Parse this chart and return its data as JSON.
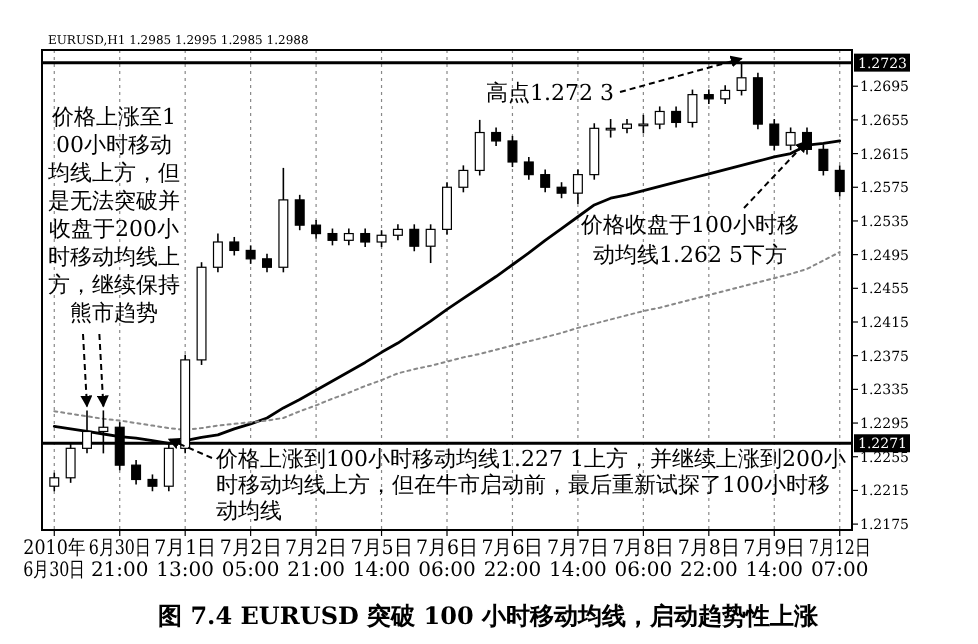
{
  "chart_data": {
    "type": "candlestick",
    "title": "图 7.4 EURUSD 突破 100 小时移动均线，启动趋势性上涨",
    "subtitle": "EURUSD,H1 1.2985 1.2995 1.2985 1.2988",
    "color": "#000000",
    "categories": [
      "2010年 6月30日",
      null,
      null,
      null,
      "6月30日 21:00",
      null,
      null,
      null,
      "7月1日 13:00",
      null,
      null,
      null,
      "7月2日 05:00",
      null,
      null,
      null,
      "7月2日 21:00",
      null,
      null,
      null,
      "7月5日 14:00",
      null,
      null,
      null,
      "7月6日 06:00",
      null,
      null,
      null,
      "7月6日 22:00",
      null,
      null,
      null,
      "7月7日 14:00",
      null,
      null,
      null,
      "7月8日 06:00",
      null,
      null,
      null,
      "7月8日 22:00",
      null,
      null,
      null,
      "7月9日 14:00",
      null,
      null,
      null,
      "7月12日 07:00"
    ],
    "ohlc": [
      [
        1.222,
        1.2236,
        1.2214,
        1.223
      ],
      [
        1.223,
        1.2271,
        1.2224,
        1.2265
      ],
      [
        1.2265,
        1.231,
        1.2259,
        1.2285
      ],
      [
        1.2285,
        1.231,
        1.2259,
        1.229
      ],
      [
        1.229,
        1.2296,
        1.2239,
        1.2245
      ],
      [
        1.2245,
        1.2251,
        1.2222,
        1.2228
      ],
      [
        1.2228,
        1.2234,
        1.2214,
        1.222
      ],
      [
        1.222,
        1.2271,
        1.2214,
        1.2265
      ],
      [
        1.2265,
        1.2376,
        1.2259,
        1.237
      ],
      [
        1.237,
        1.2486,
        1.2364,
        1.248
      ],
      [
        1.248,
        1.252,
        1.2474,
        1.251
      ],
      [
        1.251,
        1.2516,
        1.2494,
        1.25
      ],
      [
        1.25,
        1.2506,
        1.2484,
        1.249
      ],
      [
        1.249,
        1.2496,
        1.2474,
        1.248
      ],
      [
        1.248,
        1.2598,
        1.2474,
        1.256
      ],
      [
        1.256,
        1.2566,
        1.2524,
        1.253
      ],
      [
        1.253,
        1.2536,
        1.2514,
        1.252
      ],
      [
        1.252,
        1.2526,
        1.2506,
        1.2512
      ],
      [
        1.2512,
        1.2526,
        1.2506,
        1.252
      ],
      [
        1.252,
        1.2526,
        1.2504,
        1.251
      ],
      [
        1.251,
        1.2524,
        1.2504,
        1.2518
      ],
      [
        1.2518,
        1.2531,
        1.2512,
        1.2525
      ],
      [
        1.2525,
        1.2531,
        1.2499,
        1.2505
      ],
      [
        1.2505,
        1.2531,
        1.2485,
        1.2525
      ],
      [
        1.2525,
        1.2581,
        1.2519,
        1.2575
      ],
      [
        1.2575,
        1.2601,
        1.2569,
        1.2595
      ],
      [
        1.2595,
        1.2655,
        1.2589,
        1.264
      ],
      [
        1.264,
        1.2646,
        1.2624,
        1.263
      ],
      [
        1.263,
        1.2636,
        1.2599,
        1.2605
      ],
      [
        1.2605,
        1.2611,
        1.2584,
        1.259
      ],
      [
        1.259,
        1.2596,
        1.2569,
        1.2575
      ],
      [
        1.2575,
        1.2581,
        1.2562,
        1.2568
      ],
      [
        1.2568,
        1.2596,
        1.2555,
        1.259
      ],
      [
        1.259,
        1.2651,
        1.2584,
        1.2645
      ],
      [
        1.2645,
        1.2656,
        1.2634,
        1.2645
      ],
      [
        1.2645,
        1.2656,
        1.2639,
        1.265
      ],
      [
        1.265,
        1.2661,
        1.2639,
        1.265
      ],
      [
        1.265,
        1.2671,
        1.2644,
        1.2665
      ],
      [
        1.2665,
        1.2671,
        1.2646,
        1.2652
      ],
      [
        1.2652,
        1.2691,
        1.2646,
        1.2685
      ],
      [
        1.2685,
        1.2691,
        1.2674,
        1.268
      ],
      [
        1.268,
        1.2696,
        1.2674,
        1.269
      ],
      [
        1.269,
        1.2723,
        1.2684,
        1.2705
      ],
      [
        1.2705,
        1.2711,
        1.2644,
        1.265
      ],
      [
        1.265,
        1.2656,
        1.2619,
        1.2625
      ],
      [
        1.2625,
        1.2646,
        1.2619,
        1.264
      ],
      [
        1.264,
        1.2646,
        1.2614,
        1.262
      ],
      [
        1.262,
        1.2626,
        1.2589,
        1.2595
      ],
      [
        1.2595,
        1.2601,
        1.2564,
        1.257
      ]
    ],
    "series": [
      {
        "type": "line",
        "values": [
          1.2291,
          1.2288,
          1.2285,
          1.2282,
          1.2279,
          1.2277,
          1.2274,
          1.2271,
          1.2274,
          1.2278,
          1.2281,
          1.2288,
          1.2294,
          1.2301,
          1.2313,
          1.2323,
          1.2334,
          1.2345,
          1.2356,
          1.2367,
          1.2379,
          1.239,
          1.2403,
          1.2416,
          1.243,
          1.2443,
          1.2456,
          1.2469,
          1.2483,
          1.2497,
          1.2512,
          1.2526,
          1.254,
          1.2554,
          1.2562,
          1.2566,
          1.2571,
          1.2576,
          1.2581,
          1.2586,
          1.2591,
          1.2596,
          1.2601,
          1.2606,
          1.2611,
          1.2615,
          1.2625,
          1.2627,
          1.263
        ],
        "color": "#000000",
        "line_style": "solid"
      },
      {
        "type": "line",
        "values": [
          1.2309,
          1.2306,
          1.2303,
          1.23,
          1.2298,
          1.2295,
          1.2292,
          1.2289,
          1.2287,
          1.2289,
          1.2292,
          1.2294,
          1.2296,
          1.2298,
          1.2301,
          1.2309,
          1.2316,
          1.2324,
          1.2331,
          1.2339,
          1.2346,
          1.2354,
          1.2359,
          1.2363,
          1.2368,
          1.2373,
          1.2377,
          1.2382,
          1.2387,
          1.2392,
          1.2397,
          1.2402,
          1.2408,
          1.2413,
          1.2418,
          1.2423,
          1.2428,
          1.2432,
          1.2437,
          1.2442,
          1.2447,
          1.2452,
          1.2457,
          1.2462,
          1.2467,
          1.2472,
          1.2478,
          1.2488,
          1.2498
        ],
        "color": "#888888",
        "line_style": "dotted"
      }
    ],
    "ylim": [
      1.2168,
      1.2738
    ],
    "yticks": [
      1.2175,
      1.2215,
      1.2255,
      1.2295,
      1.2335,
      1.2375,
      1.2415,
      1.2455,
      1.2495,
      1.2535,
      1.2575,
      1.2615,
      1.2655,
      1.2695
    ],
    "grid": "x",
    "ref_lines": [
      {
        "axis": "y",
        "value": 1.2723,
        "label": "1.2723",
        "color": "#000000"
      },
      {
        "axis": "y",
        "value": 1.2271,
        "label": "1.2271",
        "color": "#000000"
      }
    ],
    "annotations": [
      {
        "text": "价格上涨至100小时移动均线上方，但是无法突破并收盘于200小时移动均线上方，继续保持熊市趋势",
        "y": 1.231
      },
      {
        "text": "高点1.272 3",
        "y": 1.2723
      },
      "价格收盘于100小时移动均线1.262 5下方",
      {
        "text": "价格上涨到100小时移动均线1.227 1上方，并继续上涨到200小时移动均线上方，但在牛市启动前，最后重新试探了100小时移动均线",
        "y": 1.2271
      }
    ]
  }
}
